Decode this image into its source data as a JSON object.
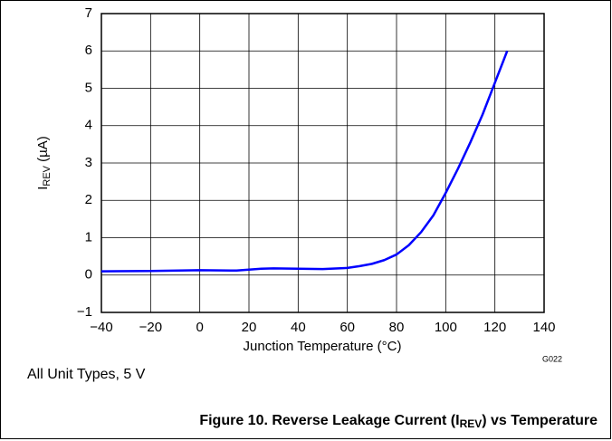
{
  "chart_data": {
    "type": "line",
    "title": [
      "Figure 10. Reverse Leakage Current (I",
      "REV",
      ") vs Temperature"
    ],
    "ylabel": [
      "I",
      "REV",
      " (µA)"
    ],
    "xlabel": "Junction Temperature (°C)",
    "annotations": [
      "G022",
      "All Unit Types, 5 V"
    ],
    "x": [
      -40,
      -20,
      0,
      15,
      25,
      30,
      40,
      50,
      60,
      65,
      70,
      75,
      80,
      85,
      90,
      95,
      100,
      105,
      110,
      115,
      120,
      125
    ],
    "series": [
      {
        "color": "#0000ff",
        "values": [
          0.1,
          0.11,
          0.13,
          0.12,
          0.17,
          0.18,
          0.17,
          0.16,
          0.19,
          0.24,
          0.3,
          0.4,
          0.55,
          0.8,
          1.15,
          1.6,
          2.2,
          2.85,
          3.55,
          4.3,
          5.15,
          6.0
        ]
      }
    ],
    "xlim": [
      -40,
      140
    ],
    "xticks": [
      {
        "value": -40,
        "label": "−40"
      },
      {
        "value": -20,
        "label": "−20"
      },
      0,
      20,
      40,
      60,
      80,
      100,
      120,
      140
    ],
    "ylim": [
      -1,
      7
    ],
    "yticks": [
      {
        "value": -1,
        "label": "−1"
      },
      0,
      1,
      2,
      3,
      4,
      5,
      6,
      7
    ],
    "grid": true
  }
}
